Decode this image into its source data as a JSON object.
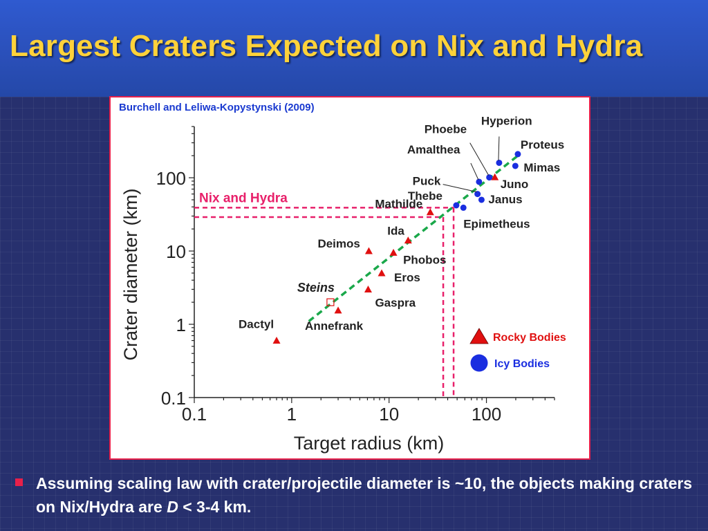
{
  "slide": {
    "title": "Largest Craters Expected on Nix and Hydra",
    "bullet_part1": "Assuming scaling law with crater/projectile diameter is ~10, the objects making craters on Nix/Hydra are ",
    "bullet_italic": "D",
    "bullet_part2": " < 3-4 km."
  },
  "colors": {
    "title": "#ffd23a",
    "rocky": "#e01010",
    "icy": "#1a2ee0",
    "fit_line": "#1aa84a",
    "nix_hydra": "#e8206a",
    "citation": "#1a3ad0"
  },
  "chart_data": {
    "type": "scatter",
    "citation": "Burchell and Leliwa-Kopystynski (2009)",
    "xlabel": "Target radius (km)",
    "ylabel": "Crater diameter (km)",
    "xscale": "log",
    "yscale": "log",
    "xlim": [
      0.1,
      500
    ],
    "ylim": [
      0.1,
      500
    ],
    "xticks": [
      0.1,
      1,
      10,
      100
    ],
    "xtick_labels": [
      "0.1",
      "1",
      "10",
      "100"
    ],
    "yticks": [
      0.1,
      1,
      10,
      100
    ],
    "ytick_labels": [
      "0.1",
      "1",
      "10",
      "100"
    ],
    "legend": [
      {
        "name": "Rocky Bodies",
        "marker": "triangle",
        "color": "#e01010"
      },
      {
        "name": "Icy Bodies",
        "marker": "circle",
        "color": "#1a2ee0"
      }
    ],
    "legend_position": "right",
    "rocky_bodies": [
      {
        "name": "Dactyl",
        "x": 0.7,
        "y": 0.6
      },
      {
        "name": "Annefrank",
        "x": 3.0,
        "y": 1.55
      },
      {
        "name": "Gaspra",
        "x": 6.1,
        "y": 3.0
      },
      {
        "name": "Eros",
        "x": 8.4,
        "y": 5.0
      },
      {
        "name": "Phobos",
        "x": 11.1,
        "y": 9.5
      },
      {
        "name": "Deimos",
        "x": 6.2,
        "y": 10.0
      },
      {
        "name": "Ida",
        "x": 15.7,
        "y": 14.0
      },
      {
        "name": "Mathilde",
        "x": 26.5,
        "y": 34.0
      },
      {
        "name": "Juno",
        "x": 122,
        "y": 102
      }
    ],
    "steins": {
      "name": "Steins",
      "x": 2.5,
      "y": 2.0,
      "marker": "open-square"
    },
    "icy_bodies": [
      {
        "name": "Thebe",
        "x": 49,
        "y": 42
      },
      {
        "name": "Epimetheus",
        "x": 58,
        "y": 39
      },
      {
        "name": "Janus",
        "x": 89,
        "y": 50
      },
      {
        "name": "Puck",
        "x": 81,
        "y": 60
      },
      {
        "name": "Amalthea",
        "x": 84,
        "y": 88
      },
      {
        "name": "Phoebe",
        "x": 107,
        "y": 101
      },
      {
        "name": "Hyperion",
        "x": 135,
        "y": 160
      },
      {
        "name": "Mimas",
        "x": 198,
        "y": 145
      },
      {
        "name": "Proteus",
        "x": 210,
        "y": 210
      }
    ],
    "fit_line": {
      "x": [
        1.5,
        220
      ],
      "y": [
        1.1,
        210
      ],
      "style": "dashed"
    },
    "nix_hydra": {
      "label": "Nix and Hydra",
      "radii": [
        36,
        46
      ],
      "craters": [
        29,
        39
      ]
    }
  }
}
